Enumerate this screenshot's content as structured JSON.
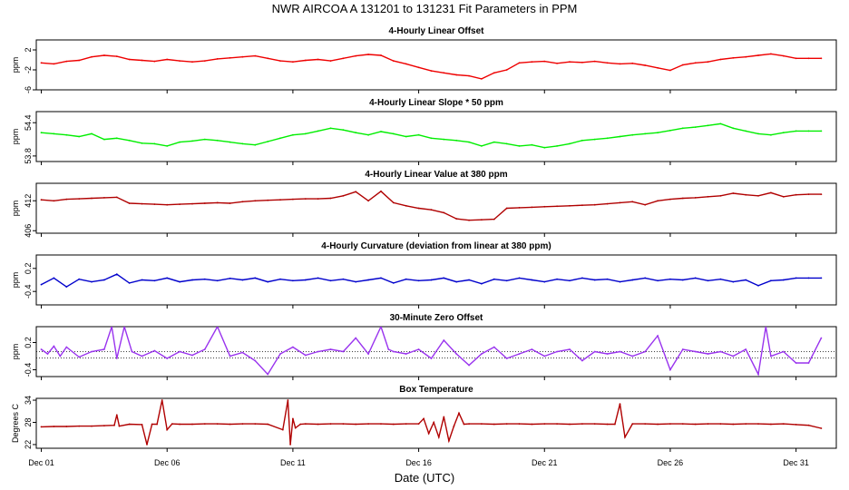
{
  "title": "NWR   AIRCOA A   131201 to 131231   Fit Parameters in PPM",
  "x_axis_label": "Date (UTC)",
  "x_tick_labels": [
    "Dec 01",
    "Dec 06",
    "Dec 11",
    "Dec 16",
    "Dec 21",
    "Dec 26",
    "Dec 31"
  ],
  "chart_data": [
    {
      "type": "line",
      "title": "4-Hourly Linear Offset",
      "ylabel": "ppm",
      "ylim": [
        -6,
        4
      ],
      "y_ticks": [
        "-6",
        "-2",
        "2"
      ],
      "color": "#ee0000",
      "x_unit": "day of December 2013",
      "xlim": [
        0.8,
        32.6
      ],
      "series": [
        {
          "x": [
            1.0,
            1.5,
            2.0,
            2.5,
            3.0,
            3.5,
            4.0,
            4.5,
            5.0,
            5.5,
            6.0,
            6.5,
            7.0,
            7.5,
            8.0,
            8.5,
            9.0,
            9.5,
            10.0,
            10.5,
            11.0,
            11.5,
            12.0,
            12.5,
            13.0,
            13.5,
            14.0,
            14.5,
            15.0,
            15.5,
            16.0,
            16.5,
            17.0,
            17.5,
            18.0,
            18.5,
            19.0,
            19.5,
            20.0,
            20.5,
            21.0,
            21.5,
            22.0,
            22.5,
            23.0,
            23.5,
            24.0,
            24.5,
            25.0,
            25.5,
            26.0,
            26.5,
            27.0,
            27.5,
            28.0,
            28.5,
            29.0,
            29.5,
            30.0,
            30.5,
            31.0,
            31.5,
            32.0
          ],
          "values": [
            -0.6,
            -0.8,
            -0.3,
            -0.1,
            0.6,
            0.9,
            0.7,
            0.1,
            -0.1,
            -0.3,
            0.1,
            -0.2,
            -0.4,
            -0.2,
            0.2,
            0.4,
            0.6,
            0.8,
            0.3,
            -0.2,
            -0.4,
            -0.1,
            0.1,
            -0.2,
            0.3,
            0.8,
            1.1,
            0.9,
            -0.2,
            -0.8,
            -1.5,
            -2.2,
            -2.6,
            -3.0,
            -3.2,
            -3.8,
            -2.6,
            -2.0,
            -0.6,
            -0.4,
            -0.3,
            -0.7,
            -0.4,
            -0.5,
            -0.3,
            -0.6,
            -0.8,
            -0.7,
            -1.1,
            -1.6,
            -2.1,
            -1.0,
            -0.6,
            -0.4,
            0.1,
            0.4,
            0.6,
            0.9,
            1.2,
            0.8,
            0.3,
            0.3,
            0.3
          ]
        }
      ]
    },
    {
      "type": "line",
      "title": "4-Hourly Linear Slope * 50 ppm",
      "ylabel": "ppm",
      "ylim": [
        53.7,
        54.6
      ],
      "y_ticks": [
        "53.8",
        "54.4"
      ],
      "color": "#00ee00",
      "x_unit": "day of December 2013",
      "xlim": [
        0.8,
        32.6
      ],
      "series": [
        {
          "x": [
            1.0,
            1.5,
            2.0,
            2.5,
            3.0,
            3.5,
            4.0,
            4.5,
            5.0,
            5.5,
            6.0,
            6.5,
            7.0,
            7.5,
            8.0,
            8.5,
            9.0,
            9.5,
            10.0,
            10.5,
            11.0,
            11.5,
            12.0,
            12.5,
            13.0,
            13.5,
            14.0,
            14.5,
            15.0,
            15.5,
            16.0,
            16.5,
            17.0,
            17.5,
            18.0,
            18.5,
            19.0,
            19.5,
            20.0,
            20.5,
            21.0,
            21.5,
            22.0,
            22.5,
            23.0,
            23.5,
            24.0,
            24.5,
            25.0,
            25.5,
            26.0,
            26.5,
            27.0,
            27.5,
            28.0,
            28.5,
            29.0,
            29.5,
            30.0,
            30.5,
            31.0,
            31.5,
            32.0
          ],
          "values": [
            54.22,
            54.2,
            54.18,
            54.15,
            54.2,
            54.1,
            54.12,
            54.08,
            54.03,
            54.02,
            53.98,
            54.05,
            54.07,
            54.1,
            54.08,
            54.05,
            54.02,
            54.0,
            54.06,
            54.12,
            54.18,
            54.2,
            54.25,
            54.3,
            54.27,
            54.22,
            54.18,
            54.24,
            54.2,
            54.15,
            54.18,
            54.12,
            54.1,
            54.08,
            54.05,
            53.98,
            54.05,
            54.02,
            53.98,
            54.0,
            53.95,
            53.98,
            54.02,
            54.08,
            54.1,
            54.12,
            54.15,
            54.18,
            54.2,
            54.22,
            54.26,
            54.3,
            54.32,
            54.35,
            54.38,
            54.3,
            54.25,
            54.2,
            54.18,
            54.22,
            54.25,
            54.25,
            54.25
          ]
        }
      ]
    },
    {
      "type": "line",
      "title": "4-Hourly Linear Value at 380 ppm",
      "ylabel": "ppm",
      "ylim": [
        405.5,
        415.5
      ],
      "y_ticks": [
        "406",
        "412"
      ],
      "color": "#b00000",
      "x_unit": "day of December 2013",
      "xlim": [
        0.8,
        32.6
      ],
      "series": [
        {
          "x": [
            1.0,
            1.5,
            2.0,
            2.5,
            3.0,
            3.5,
            4.0,
            4.5,
            5.0,
            5.5,
            6.0,
            6.5,
            7.0,
            7.5,
            8.0,
            8.5,
            9.0,
            9.5,
            10.0,
            10.5,
            11.0,
            11.5,
            12.0,
            12.5,
            13.0,
            13.5,
            14.0,
            14.5,
            15.0,
            15.5,
            16.0,
            16.5,
            17.0,
            17.5,
            18.0,
            18.5,
            19.0,
            19.5,
            20.0,
            20.5,
            21.0,
            21.5,
            22.0,
            22.5,
            23.0,
            23.5,
            24.0,
            24.5,
            25.0,
            25.5,
            26.0,
            26.5,
            27.0,
            27.5,
            28.0,
            28.5,
            29.0,
            29.5,
            30.0,
            30.5,
            31.0,
            31.5,
            32.0
          ],
          "values": [
            412.2,
            412.0,
            412.3,
            412.4,
            412.5,
            412.6,
            412.7,
            411.5,
            411.4,
            411.3,
            411.2,
            411.3,
            411.4,
            411.5,
            411.6,
            411.5,
            411.8,
            412.0,
            412.1,
            412.2,
            412.3,
            412.4,
            412.4,
            412.5,
            413.0,
            413.8,
            412.0,
            413.9,
            411.6,
            411.0,
            410.5,
            410.2,
            409.6,
            408.4,
            408.1,
            408.2,
            408.3,
            410.5,
            410.6,
            410.7,
            410.8,
            410.9,
            411.0,
            411.1,
            411.2,
            411.4,
            411.6,
            411.8,
            411.2,
            412.0,
            412.3,
            412.5,
            412.6,
            412.8,
            413.0,
            413.5,
            413.2,
            413.0,
            413.6,
            412.8,
            413.2,
            413.3,
            413.3
          ]
        }
      ]
    },
    {
      "type": "line",
      "title": "4-Hourly Curvature (deviation from linear at 380 ppm)",
      "ylabel": "ppm",
      "ylim": [
        -0.75,
        0.55
      ],
      "y_ticks": [
        "-0.4",
        "0.2"
      ],
      "color": "#0000cc",
      "x_unit": "day of December 2013",
      "xlim": [
        0.8,
        32.6
      ],
      "series": [
        {
          "x": [
            1.0,
            1.5,
            2.0,
            2.5,
            3.0,
            3.5,
            4.0,
            4.5,
            5.0,
            5.5,
            6.0,
            6.5,
            7.0,
            7.5,
            8.0,
            8.5,
            9.0,
            9.5,
            10.0,
            10.5,
            11.0,
            11.5,
            12.0,
            12.5,
            13.0,
            13.5,
            14.0,
            14.5,
            15.0,
            15.5,
            16.0,
            16.5,
            17.0,
            17.5,
            18.0,
            18.5,
            19.0,
            19.5,
            20.0,
            20.5,
            21.0,
            21.5,
            22.0,
            22.5,
            23.0,
            23.5,
            24.0,
            24.5,
            25.0,
            25.5,
            26.0,
            26.5,
            27.0,
            27.5,
            28.0,
            28.5,
            29.0,
            29.5,
            30.0,
            30.5,
            31.0,
            31.5,
            32.0
          ],
          "values": [
            -0.22,
            -0.05,
            -0.28,
            -0.08,
            -0.15,
            -0.1,
            0.05,
            -0.18,
            -0.1,
            -0.12,
            -0.05,
            -0.15,
            -0.1,
            -0.08,
            -0.12,
            -0.06,
            -0.1,
            -0.05,
            -0.15,
            -0.08,
            -0.12,
            -0.1,
            -0.05,
            -0.12,
            -0.08,
            -0.15,
            -0.1,
            -0.05,
            -0.18,
            -0.08,
            -0.12,
            -0.1,
            -0.05,
            -0.15,
            -0.1,
            -0.2,
            -0.08,
            -0.12,
            -0.05,
            -0.1,
            -0.15,
            -0.08,
            -0.12,
            -0.05,
            -0.1,
            -0.08,
            -0.15,
            -0.1,
            -0.05,
            -0.12,
            -0.08,
            -0.1,
            -0.05,
            -0.12,
            -0.08,
            -0.15,
            -0.1,
            -0.25,
            -0.12,
            -0.1,
            -0.05,
            -0.05,
            -0.05
          ]
        }
      ]
    },
    {
      "type": "line",
      "title": "30-Minute Zero Offset",
      "ylabel": "ppm",
      "ylim": [
        -0.55,
        0.55
      ],
      "y_ticks": [
        "-0.4",
        "0.2"
      ],
      "color": "#9933ee",
      "x_unit": "day of December 2013",
      "xlim": [
        0.8,
        32.6
      ],
      "series": [
        {
          "x": [
            1.0,
            1.25,
            1.5,
            1.75,
            2.0,
            2.5,
            3.0,
            3.5,
            3.8,
            4.0,
            4.3,
            4.6,
            5.0,
            5.5,
            6.0,
            6.5,
            7.0,
            7.5,
            8.0,
            8.5,
            9.0,
            9.5,
            10.0,
            10.5,
            11.0,
            11.5,
            12.0,
            12.5,
            13.0,
            13.5,
            14.0,
            14.5,
            14.8,
            15.0,
            15.5,
            16.0,
            16.5,
            17.0,
            17.5,
            18.0,
            18.5,
            19.0,
            19.5,
            20.0,
            20.5,
            21.0,
            21.5,
            22.0,
            22.5,
            23.0,
            23.5,
            24.0,
            24.5,
            25.0,
            25.5,
            26.0,
            26.5,
            27.0,
            27.5,
            28.0,
            28.5,
            29.0,
            29.5,
            29.8,
            30.0,
            30.5,
            31.0,
            31.5,
            32.0
          ],
          "values": [
            0.05,
            -0.05,
            0.12,
            -0.1,
            0.1,
            -0.12,
            0.0,
            0.05,
            0.55,
            -0.15,
            0.55,
            0.0,
            -0.1,
            0.02,
            -0.15,
            0.0,
            -0.08,
            0.05,
            0.55,
            -0.1,
            -0.02,
            -0.2,
            -0.5,
            -0.05,
            0.1,
            -0.08,
            0.0,
            0.05,
            0.0,
            0.3,
            -0.05,
            0.55,
            0.05,
            0.0,
            -0.05,
            0.05,
            -0.15,
            0.25,
            -0.05,
            -0.3,
            -0.05,
            0.1,
            -0.15,
            -0.05,
            0.05,
            -0.1,
            0.0,
            0.05,
            -0.2,
            0.0,
            -0.05,
            0.0,
            -0.1,
            0.0,
            0.35,
            -0.4,
            0.05,
            0.0,
            -0.05,
            0.0,
            -0.1,
            0.05,
            -0.5,
            0.55,
            -0.1,
            0.0,
            -0.25,
            -0.25,
            0.3
          ]
        }
      ],
      "reference_lines": [
        0.0,
        -0.14
      ]
    },
    {
      "type": "line",
      "title": "Box Temperature",
      "ylabel": "Degrees C",
      "ylim": [
        21,
        34.5
      ],
      "y_ticks": [
        "22",
        "28",
        "34"
      ],
      "color": "#b00000",
      "x_unit": "day of December 2013",
      "xlim": [
        0.8,
        32.6
      ],
      "series": [
        {
          "x": [
            1.0,
            1.5,
            2.0,
            2.5,
            3.0,
            3.5,
            3.9,
            4.0,
            4.1,
            4.5,
            5.0,
            5.2,
            5.4,
            5.6,
            5.8,
            6.0,
            6.2,
            6.5,
            7.0,
            7.5,
            8.0,
            8.5,
            9.0,
            9.5,
            10.0,
            10.6,
            10.8,
            10.9,
            11.0,
            11.1,
            11.3,
            11.5,
            12.0,
            12.5,
            13.0,
            13.5,
            14.0,
            14.5,
            15.0,
            15.5,
            16.0,
            16.2,
            16.4,
            16.6,
            16.8,
            17.0,
            17.2,
            17.4,
            17.6,
            17.8,
            18.0,
            18.5,
            19.0,
            19.5,
            20.0,
            20.5,
            21.0,
            21.5,
            22.0,
            22.5,
            23.0,
            23.5,
            23.8,
            24.0,
            24.2,
            24.5,
            25.0,
            25.5,
            26.0,
            26.5,
            27.0,
            27.5,
            28.0,
            28.5,
            29.0,
            29.5,
            30.0,
            30.5,
            31.0,
            31.5,
            32.0
          ],
          "values": [
            26.8,
            26.9,
            26.9,
            27.0,
            27.0,
            27.1,
            27.2,
            30.0,
            27.0,
            27.5,
            27.4,
            22.0,
            27.5,
            27.5,
            34.0,
            26.0,
            27.6,
            27.5,
            27.5,
            27.6,
            27.6,
            27.5,
            27.6,
            27.6,
            27.5,
            26.0,
            34.0,
            22.0,
            29.0,
            26.5,
            27.5,
            27.6,
            27.5,
            27.6,
            27.6,
            27.5,
            27.6,
            27.6,
            27.5,
            27.6,
            27.6,
            29.0,
            25.0,
            28.0,
            24.0,
            29.5,
            23.0,
            27.0,
            30.5,
            27.5,
            27.6,
            27.6,
            27.5,
            27.6,
            27.6,
            27.5,
            27.6,
            27.6,
            27.5,
            27.6,
            27.6,
            27.5,
            27.5,
            33.0,
            24.0,
            27.6,
            27.6,
            27.5,
            27.6,
            27.6,
            27.5,
            27.6,
            27.6,
            27.5,
            27.6,
            27.6,
            27.5,
            27.6,
            27.4,
            27.2,
            26.4
          ]
        }
      ]
    }
  ]
}
